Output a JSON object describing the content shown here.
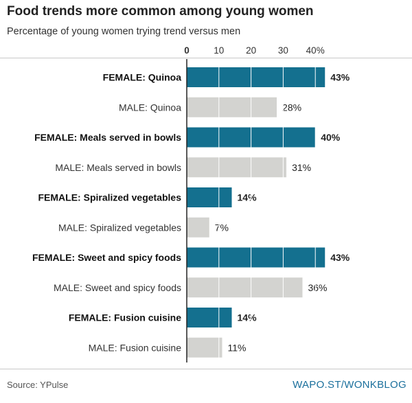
{
  "title": "Food trends more common among young women",
  "subtitle": "Percentage of young women trying trend versus men",
  "source": "Source: YPulse",
  "credit_link": "WAPO.ST/WONKBLOG",
  "colors": {
    "female": "#14708f",
    "male": "#d3d3d0",
    "gridline": "#ffffff",
    "axis": "#222222"
  },
  "chart_data": {
    "type": "bar",
    "orientation": "horizontal",
    "title": "Food trends more common among young women",
    "subtitle": "Percentage of young women trying trend versus men",
    "xlim": [
      0,
      45
    ],
    "ticks": [
      0,
      10,
      20,
      30,
      40
    ],
    "tick_labels": [
      "0",
      "10",
      "20",
      "30",
      "40%"
    ],
    "grid": true,
    "value_suffix": "%",
    "categories": [
      "FEMALE: Quinoa",
      "MALE: Quinoa",
      "FEMALE: Meals served in bowls",
      "MALE: Meals served in bowls",
      "FEMALE: Spiralized vegetables",
      "MALE: Spiralized vegetables",
      "FEMALE: Sweet and spicy foods",
      "MALE: Sweet and spicy foods",
      "FEMALE: Fusion cuisine",
      "MALE: Fusion cuisine"
    ],
    "groups": [
      "female",
      "male",
      "female",
      "male",
      "female",
      "male",
      "female",
      "male",
      "female",
      "male"
    ],
    "values": [
      43,
      28,
      40,
      31,
      14,
      7,
      43,
      36,
      14,
      11
    ]
  }
}
